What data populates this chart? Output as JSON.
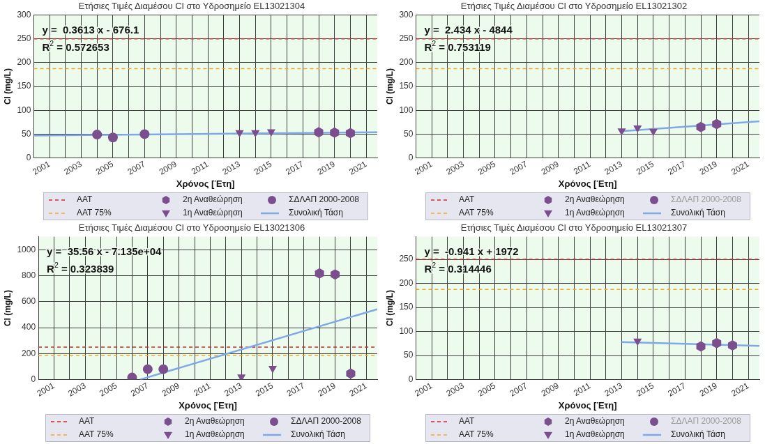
{
  "chart_data": [
    {
      "type": "scatter",
      "title": "Ετήσιες Τιμές Διαμέσου Cl στο Υδροσημείο EL13021304",
      "xlabel": "Χρόνος [Έτη]",
      "ylabel": "Cl (mg/L)",
      "xlim": [
        2000,
        2021.7
      ],
      "xticks": [
        2001,
        {
          "value": 2002,
          "label": null
        },
        2003,
        {
          "value": 2004,
          "label": null
        },
        2005,
        {
          "value": 2006,
          "label": null
        },
        2007,
        {
          "value": 2008,
          "label": null
        },
        2009,
        {
          "value": 2010,
          "label": null
        },
        2011,
        {
          "value": 2012,
          "label": null
        },
        2013,
        {
          "value": 2014,
          "label": null
        },
        2015,
        {
          "value": 2016,
          "label": null
        },
        2017,
        {
          "value": 2018,
          "label": null
        },
        2019,
        {
          "value": 2020,
          "label": null
        },
        2021
      ],
      "ylim": [
        0,
        300
      ],
      "yticks": [
        0,
        50,
        100,
        150,
        200,
        250,
        300
      ],
      "grid": true,
      "legend": "bottom",
      "ref_lines": [
        {
          "axis": "y",
          "value": 250,
          "label": "AAT",
          "color": "#d62728",
          "line_style": "dashed"
        },
        {
          "axis": "y",
          "value": 187.5,
          "label": "AAT 75%",
          "color": "#f5a623",
          "line_style": "dashed"
        }
      ],
      "annotations": [
        "y =  0.3613 x - 676.1",
        "R$^{2}$ = 0.572653"
      ],
      "series": [
        {
          "name": "2η Αναθεώρηση",
          "color": "#7b4f8e",
          "x": [
            2018,
            2019,
            2020
          ],
          "values": [
            54,
            53,
            52
          ]
        },
        {
          "name": "1η Αναθεώρηση",
          "marker": "triangle",
          "color": "#7b4f8e",
          "x": [
            2013,
            2014,
            2015
          ],
          "values": [
            53,
            53,
            55
          ]
        },
        {
          "name": "ΣΔΛΑΠ 2000-2008",
          "marker": "circle",
          "color": "#7b4f8e",
          "x": [
            2004,
            2005,
            2007
          ],
          "values": [
            49,
            43,
            50
          ]
        },
        {
          "name": "Συνολική Τάση",
          "type": "line",
          "marker": "none",
          "color": "#7fa8e8",
          "x": [
            2000,
            2021.7
          ],
          "values": [
            47,
            54
          ]
        }
      ]
    },
    {
      "type": "scatter",
      "title": "Ετήσιες Τιμές Διαμέσου Cl στο Υδροσημείο EL13021302",
      "xlabel": "Χρόνος [Έτη]",
      "ylabel": "Cl (mg/L)",
      "xlim": [
        2000,
        2021.7
      ],
      "xticks": [
        2001,
        {
          "value": 2002,
          "label": null
        },
        2003,
        {
          "value": 2004,
          "label": null
        },
        2005,
        {
          "value": 2006,
          "label": null
        },
        2007,
        {
          "value": 2008,
          "label": null
        },
        2009,
        {
          "value": 2010,
          "label": null
        },
        2011,
        {
          "value": 2012,
          "label": null
        },
        2013,
        {
          "value": 2014,
          "label": null
        },
        2015,
        {
          "value": 2016,
          "label": null
        },
        2017,
        {
          "value": 2018,
          "label": null
        },
        2019,
        {
          "value": 2020,
          "label": null
        },
        2021
      ],
      "ylim": [
        0,
        300
      ],
      "yticks": [
        0,
        50,
        100,
        150,
        200,
        250,
        300
      ],
      "grid": true,
      "legend": "bottom",
      "ref_lines": [
        {
          "axis": "y",
          "value": 250,
          "label": "AAT",
          "color": "#d62728",
          "line_style": "dashed"
        },
        {
          "axis": "y",
          "value": 187.5,
          "label": "AAT 75%",
          "color": "#f5a623",
          "line_style": "dashed"
        }
      ],
      "annotations": [
        "y =  2.434 x - 4844",
        "R$^{2}$ = 0.753119"
      ],
      "series": [
        {
          "name": "2η Αναθεώρηση",
          "color": "#7b4f8e",
          "x": [
            2018,
            2019
          ],
          "values": [
            65,
            71
          ]
        },
        {
          "name": "1η Αναθεώρηση",
          "marker": "triangle",
          "color": "#7b4f8e",
          "x": [
            2013,
            2014,
            2015
          ],
          "values": [
            57,
            63,
            56
          ]
        },
        {
          "name": "ΣΔΛΑΠ 2000-2008",
          "marker": "circle",
          "color": "#7b4f8e"
        },
        {
          "name": "Συνολική Τάση",
          "type": "line",
          "marker": "none",
          "color": "#7fa8e8",
          "x": [
            2013,
            2021.7
          ],
          "values": [
            56,
            77
          ]
        }
      ]
    },
    {
      "type": "scatter",
      "title": "Ετήσιες Τιμές Διαμέσου Cl στο Υδροσημείο EL13021306",
      "xlabel": "Χρόνος [Έτη]",
      "ylabel": "Cl (mg/L)",
      "xlim": [
        2000,
        2021.7
      ],
      "xticks": [
        2001,
        {
          "value": 2002,
          "label": null
        },
        2003,
        {
          "value": 2004,
          "label": null
        },
        2005,
        {
          "value": 2006,
          "label": null
        },
        2007,
        {
          "value": 2008,
          "label": null
        },
        2009,
        {
          "value": 2010,
          "label": null
        },
        2011,
        {
          "value": 2012,
          "label": null
        },
        2013,
        {
          "value": 2014,
          "label": null
        },
        2015,
        {
          "value": 2016,
          "label": null
        },
        2017,
        {
          "value": 2018,
          "label": null
        },
        2019,
        {
          "value": 2020,
          "label": null
        },
        2021
      ],
      "ylim": [
        0,
        1100
      ],
      "yticks": [
        0,
        200,
        400,
        600,
        800,
        1000
      ],
      "grid": true,
      "legend": "bottom",
      "ref_lines": [
        {
          "axis": "y",
          "value": 250,
          "label": "AAT",
          "color": "#d62728",
          "line_style": "dashed"
        },
        {
          "axis": "y",
          "value": 187.5,
          "label": "AAT 75%",
          "color": "#f5a623",
          "line_style": "dashed"
        }
      ],
      "annotations": [
        "y =  35.56 x - 7.135e+04",
        "R$^{2}$ = 0.323839"
      ],
      "series": [
        {
          "name": "2η Αναθεώρηση",
          "color": "#7b4f8e",
          "x": [
            2018,
            2019,
            2020
          ],
          "values": [
            817,
            809,
            46
          ]
        },
        {
          "name": "1η Αναθεώρηση",
          "marker": "triangle",
          "color": "#7b4f8e",
          "x": [
            2013,
            2015
          ],
          "values": [
            20,
            86
          ]
        },
        {
          "name": "ΣΔΛΑΠ 2000-2008",
          "marker": "circle",
          "color": "#7b4f8e",
          "x": [
            2006,
            2007,
            2008
          ],
          "values": [
            16,
            80,
            80
          ]
        },
        {
          "name": "Συνολική Τάση",
          "type": "line",
          "marker": "none",
          "color": "#7fa8e8",
          "x": [
            2006.5,
            2021.7
          ],
          "values": [
            0,
            542
          ]
        }
      ]
    },
    {
      "type": "scatter",
      "title": "Ετήσιες Τιμές Διαμέσου Cl στο Υδροσημείο EL13021307",
      "xlabel": "Χρόνος [Έτη]",
      "ylabel": "Cl (mg/L)",
      "xlim": [
        2000,
        2021.7
      ],
      "xticks": [
        2001,
        {
          "value": 2002,
          "label": null
        },
        2003,
        {
          "value": 2004,
          "label": null
        },
        2005,
        {
          "value": 2006,
          "label": null
        },
        2007,
        {
          "value": 2008,
          "label": null
        },
        2009,
        {
          "value": 2010,
          "label": null
        },
        2011,
        {
          "value": 2012,
          "label": null
        },
        2013,
        {
          "value": 2014,
          "label": null
        },
        2015,
        {
          "value": 2016,
          "label": null
        },
        2017,
        {
          "value": 2018,
          "label": null
        },
        2019,
        {
          "value": 2020,
          "label": null
        },
        2021
      ],
      "ylim": [
        0,
        297
      ],
      "yticks": [
        0,
        50,
        100,
        150,
        200,
        250
      ],
      "grid": true,
      "legend": "bottom",
      "ref_lines": [
        {
          "axis": "y",
          "value": 250,
          "label": "AAT",
          "color": "#d62728",
          "line_style": "dashed"
        },
        {
          "axis": "y",
          "value": 187.5,
          "label": "AAT 75%",
          "color": "#f5a623",
          "line_style": "dashed"
        }
      ],
      "annotations": [
        "y =  -0.941 x + 1972",
        "R$^{2}$ = 0.314446"
      ],
      "series": [
        {
          "name": "2η Αναθεώρηση",
          "color": "#7b4f8e",
          "x": [
            2018,
            2019,
            2020
          ],
          "values": [
            69,
            76,
            71
          ]
        },
        {
          "name": "1η Αναθεώρηση",
          "marker": "triangle",
          "color": "#7b4f8e",
          "x": [
            2014
          ],
          "values": [
            80
          ]
        },
        {
          "name": "ΣΔΛΑΠ 2000-2008",
          "marker": "circle",
          "color": "#7b4f8e"
        },
        {
          "name": "Συνολική Τάση",
          "type": "line",
          "marker": "none",
          "color": "#7fa8e8",
          "x": [
            2013,
            2021.7
          ],
          "values": [
            78,
            70
          ]
        }
      ]
    }
  ]
}
